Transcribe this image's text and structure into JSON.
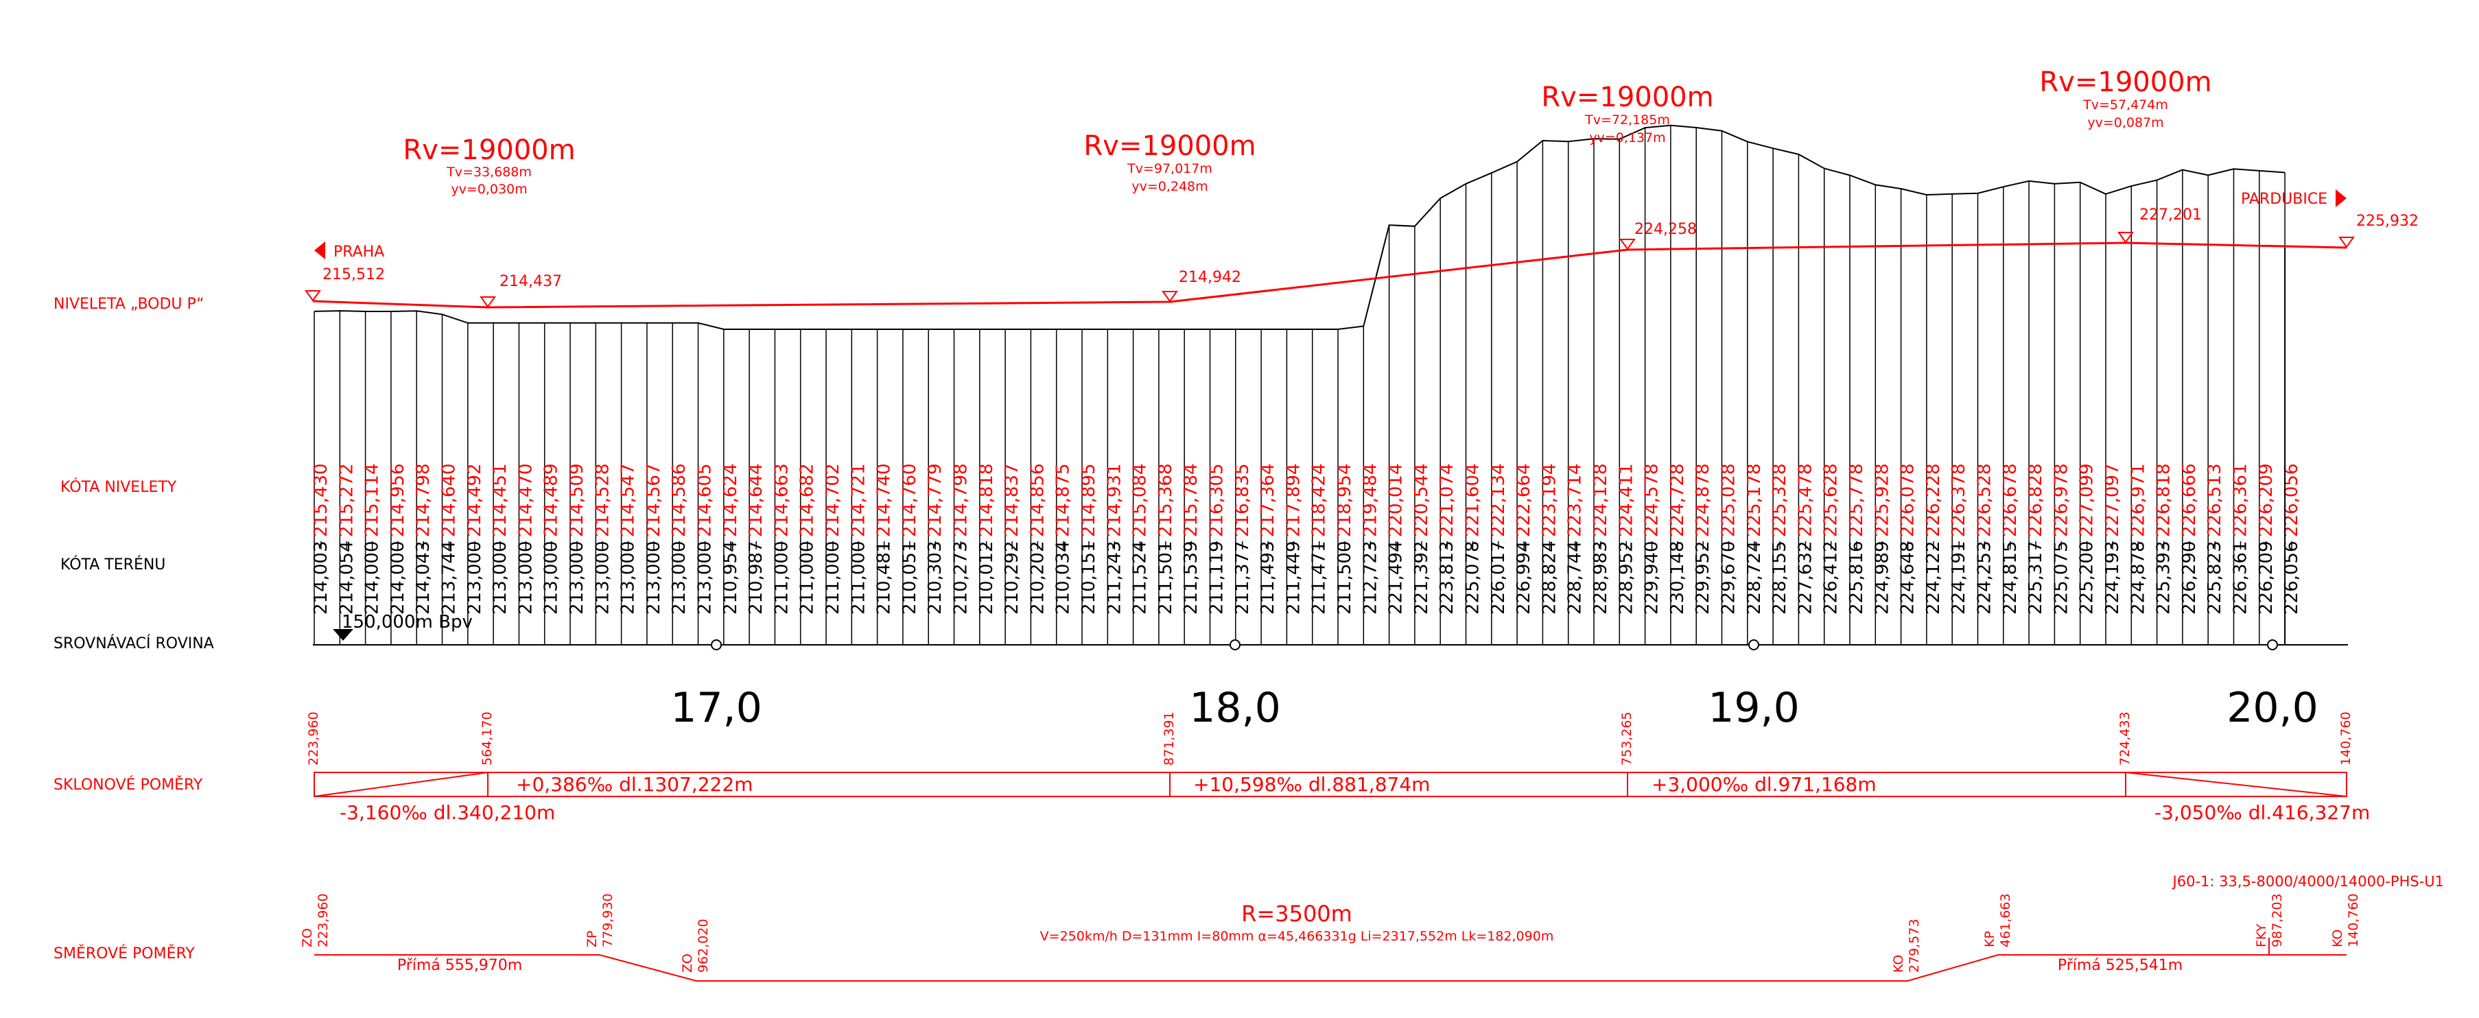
{
  "colors": {
    "red": "#ff0000",
    "black": "#000000",
    "background": "#ffffff"
  },
  "row_labels": {
    "niveleta": "NIVELETA „BODU P“",
    "kota_nivelety": "KÓTA NIVELETY",
    "kota_terenu": "KÓTA TERÉNU",
    "srovnavaci": "SROVNÁVACÍ ROVINA",
    "sklonove": "SKLONOVÉ POMĚRY",
    "smerove": "SMĚROVÉ POMĚRY"
  },
  "datum_text": "150,000m Bpv",
  "directions": {
    "left": "PRAHA",
    "right": "PARDUBICE"
  },
  "vertical_curves": [
    {
      "rv": "Rv=19000m",
      "tv": "Tv=33,688m",
      "yv": "yv=0,030m"
    },
    {
      "rv": "Rv=19000m",
      "tv": "Tv=97,017m",
      "yv": "yv=0,248m"
    },
    {
      "rv": "Rv=19000m",
      "tv": "Tv=72,185m",
      "yv": "yv=0,137m"
    },
    {
      "rv": "Rv=19000m",
      "tv": "Tv=57,474m",
      "yv": "yv=0,087m"
    }
  ],
  "profile_points": [
    "215,512",
    "214,437",
    "214,942",
    "224,258",
    "227,201",
    "225,932"
  ],
  "heights": [
    {
      "t": "214,003",
      "n": "215,430"
    },
    {
      "t": "214,054",
      "n": "215,272"
    },
    {
      "t": "214,000",
      "n": "215,114"
    },
    {
      "t": "214,000",
      "n": "214,956"
    },
    {
      "t": "214,043",
      "n": "214,798"
    },
    {
      "t": "213,744",
      "n": "214,640"
    },
    {
      "t": "213,000",
      "n": "214,492"
    },
    {
      "t": "213,000",
      "n": "214,451"
    },
    {
      "t": "213,000",
      "n": "214,470"
    },
    {
      "t": "213,000",
      "n": "214,489"
    },
    {
      "t": "213,000",
      "n": "214,509"
    },
    {
      "t": "213,000",
      "n": "214,528"
    },
    {
      "t": "213,000",
      "n": "214,547"
    },
    {
      "t": "213,000",
      "n": "214,567"
    },
    {
      "t": "213,000",
      "n": "214,586"
    },
    {
      "t": "213,000",
      "n": "214,605"
    },
    {
      "t": "210,954",
      "n": "214,624"
    },
    {
      "t": "210,987",
      "n": "214,644"
    },
    {
      "t": "211,000",
      "n": "214,663"
    },
    {
      "t": "211,000",
      "n": "214,682"
    },
    {
      "t": "211,000",
      "n": "214,702"
    },
    {
      "t": "211,000",
      "n": "214,721"
    },
    {
      "t": "210,481",
      "n": "214,740"
    },
    {
      "t": "210,051",
      "n": "214,760"
    },
    {
      "t": "210,303",
      "n": "214,779"
    },
    {
      "t": "210,273",
      "n": "214,798"
    },
    {
      "t": "210,012",
      "n": "214,818"
    },
    {
      "t": "210,292",
      "n": "214,837"
    },
    {
      "t": "210,202",
      "n": "214,856"
    },
    {
      "t": "210,034",
      "n": "214,875"
    },
    {
      "t": "210,151",
      "n": "214,895"
    },
    {
      "t": "211,243",
      "n": "214,931"
    },
    {
      "t": "211,524",
      "n": "215,084"
    },
    {
      "t": "211,501",
      "n": "215,368"
    },
    {
      "t": "211,539",
      "n": "215,784"
    },
    {
      "t": "211,119",
      "n": "216,305"
    },
    {
      "t": "211,377",
      "n": "216,835"
    },
    {
      "t": "211,493",
      "n": "217,364"
    },
    {
      "t": "211,449",
      "n": "217,894"
    },
    {
      "t": "211,471",
      "n": "218,424"
    },
    {
      "t": "211,500",
      "n": "218,954"
    },
    {
      "t": "212,723",
      "n": "219,484"
    },
    {
      "t": "221,494",
      "n": "220,014"
    },
    {
      "t": "221,392",
      "n": "220,544"
    },
    {
      "t": "223,813",
      "n": "221,074"
    },
    {
      "t": "225,078",
      "n": "221,604"
    },
    {
      "t": "226,017",
      "n": "222,134"
    },
    {
      "t": "226,994",
      "n": "222,664"
    },
    {
      "t": "228,824",
      "n": "223,194"
    },
    {
      "t": "228,744",
      "n": "223,714"
    },
    {
      "t": "228,983",
      "n": "224,128"
    },
    {
      "t": "228,952",
      "n": "224,411"
    },
    {
      "t": "229,940",
      "n": "224,578"
    },
    {
      "t": "230,148",
      "n": "224,728"
    },
    {
      "t": "229,952",
      "n": "224,878"
    },
    {
      "t": "229,670",
      "n": "225,028"
    },
    {
      "t": "228,724",
      "n": "225,178"
    },
    {
      "t": "228,155",
      "n": "225,328"
    },
    {
      "t": "227,632",
      "n": "225,478"
    },
    {
      "t": "226,412",
      "n": "225,628"
    },
    {
      "t": "225,816",
      "n": "225,778"
    },
    {
      "t": "224,989",
      "n": "225,928"
    },
    {
      "t": "224,648",
      "n": "226,078"
    },
    {
      "t": "224,122",
      "n": "226,228"
    },
    {
      "t": "224,191",
      "n": "226,378"
    },
    {
      "t": "224,253",
      "n": "226,528"
    },
    {
      "t": "224,815",
      "n": "226,678"
    },
    {
      "t": "225,317",
      "n": "226,828"
    },
    {
      "t": "225,075",
      "n": "226,978"
    },
    {
      "t": "225,200",
      "n": "227,099"
    },
    {
      "t": "224,193",
      "n": "227,097"
    },
    {
      "t": "224,878",
      "n": "226,971"
    },
    {
      "t": "225,393",
      "n": "226,818"
    },
    {
      "t": "226,290",
      "n": "226,666"
    },
    {
      "t": "225,823",
      "n": "226,513"
    },
    {
      "t": "226,361",
      "n": "226,361"
    },
    {
      "t": "226,209",
      "n": "226,209"
    },
    {
      "t": "226,056",
      "n": "226,056"
    }
  ],
  "km_labels": [
    "17,0",
    "18,0",
    "19,0",
    "20,0"
  ],
  "slope_stations": [
    "223,960",
    "564,170",
    "871,391",
    "753,265",
    "724,433",
    "140,760"
  ],
  "slopes": [
    {
      "text": "-3,160‰  dl.340,210m"
    },
    {
      "text": "+0,386‰  dl.1307,222m"
    },
    {
      "text": "+10,598‰  dl.881,874m"
    },
    {
      "text": "+3,000‰  dl.971,168m"
    },
    {
      "text": "-3,050‰  dl.416,327m"
    }
  ],
  "horizontal": {
    "points": [
      {
        "code": "ZO",
        "station": "223,960"
      },
      {
        "code": "ZP",
        "station": "779,930"
      },
      {
        "code": "ZO",
        "station": "962,020"
      },
      {
        "code": "KO",
        "station": "279,573"
      },
      {
        "code": "KP",
        "station": "461,663"
      },
      {
        "code": "FKY",
        "station": "987,203"
      },
      {
        "code": "KO",
        "station": "140,760"
      }
    ],
    "straight_1": "Přímá 555,970m",
    "straight_2": "Přímá 525,541m",
    "curve_radius": "R=3500m",
    "curve_params": "V=250km/h D=131mm I=80mm  α=45,466331g Li=2317,552m Lk=182,090m",
    "equipment": "J60-1: 33,5-8000/4000/14000-PHS-U1"
  }
}
